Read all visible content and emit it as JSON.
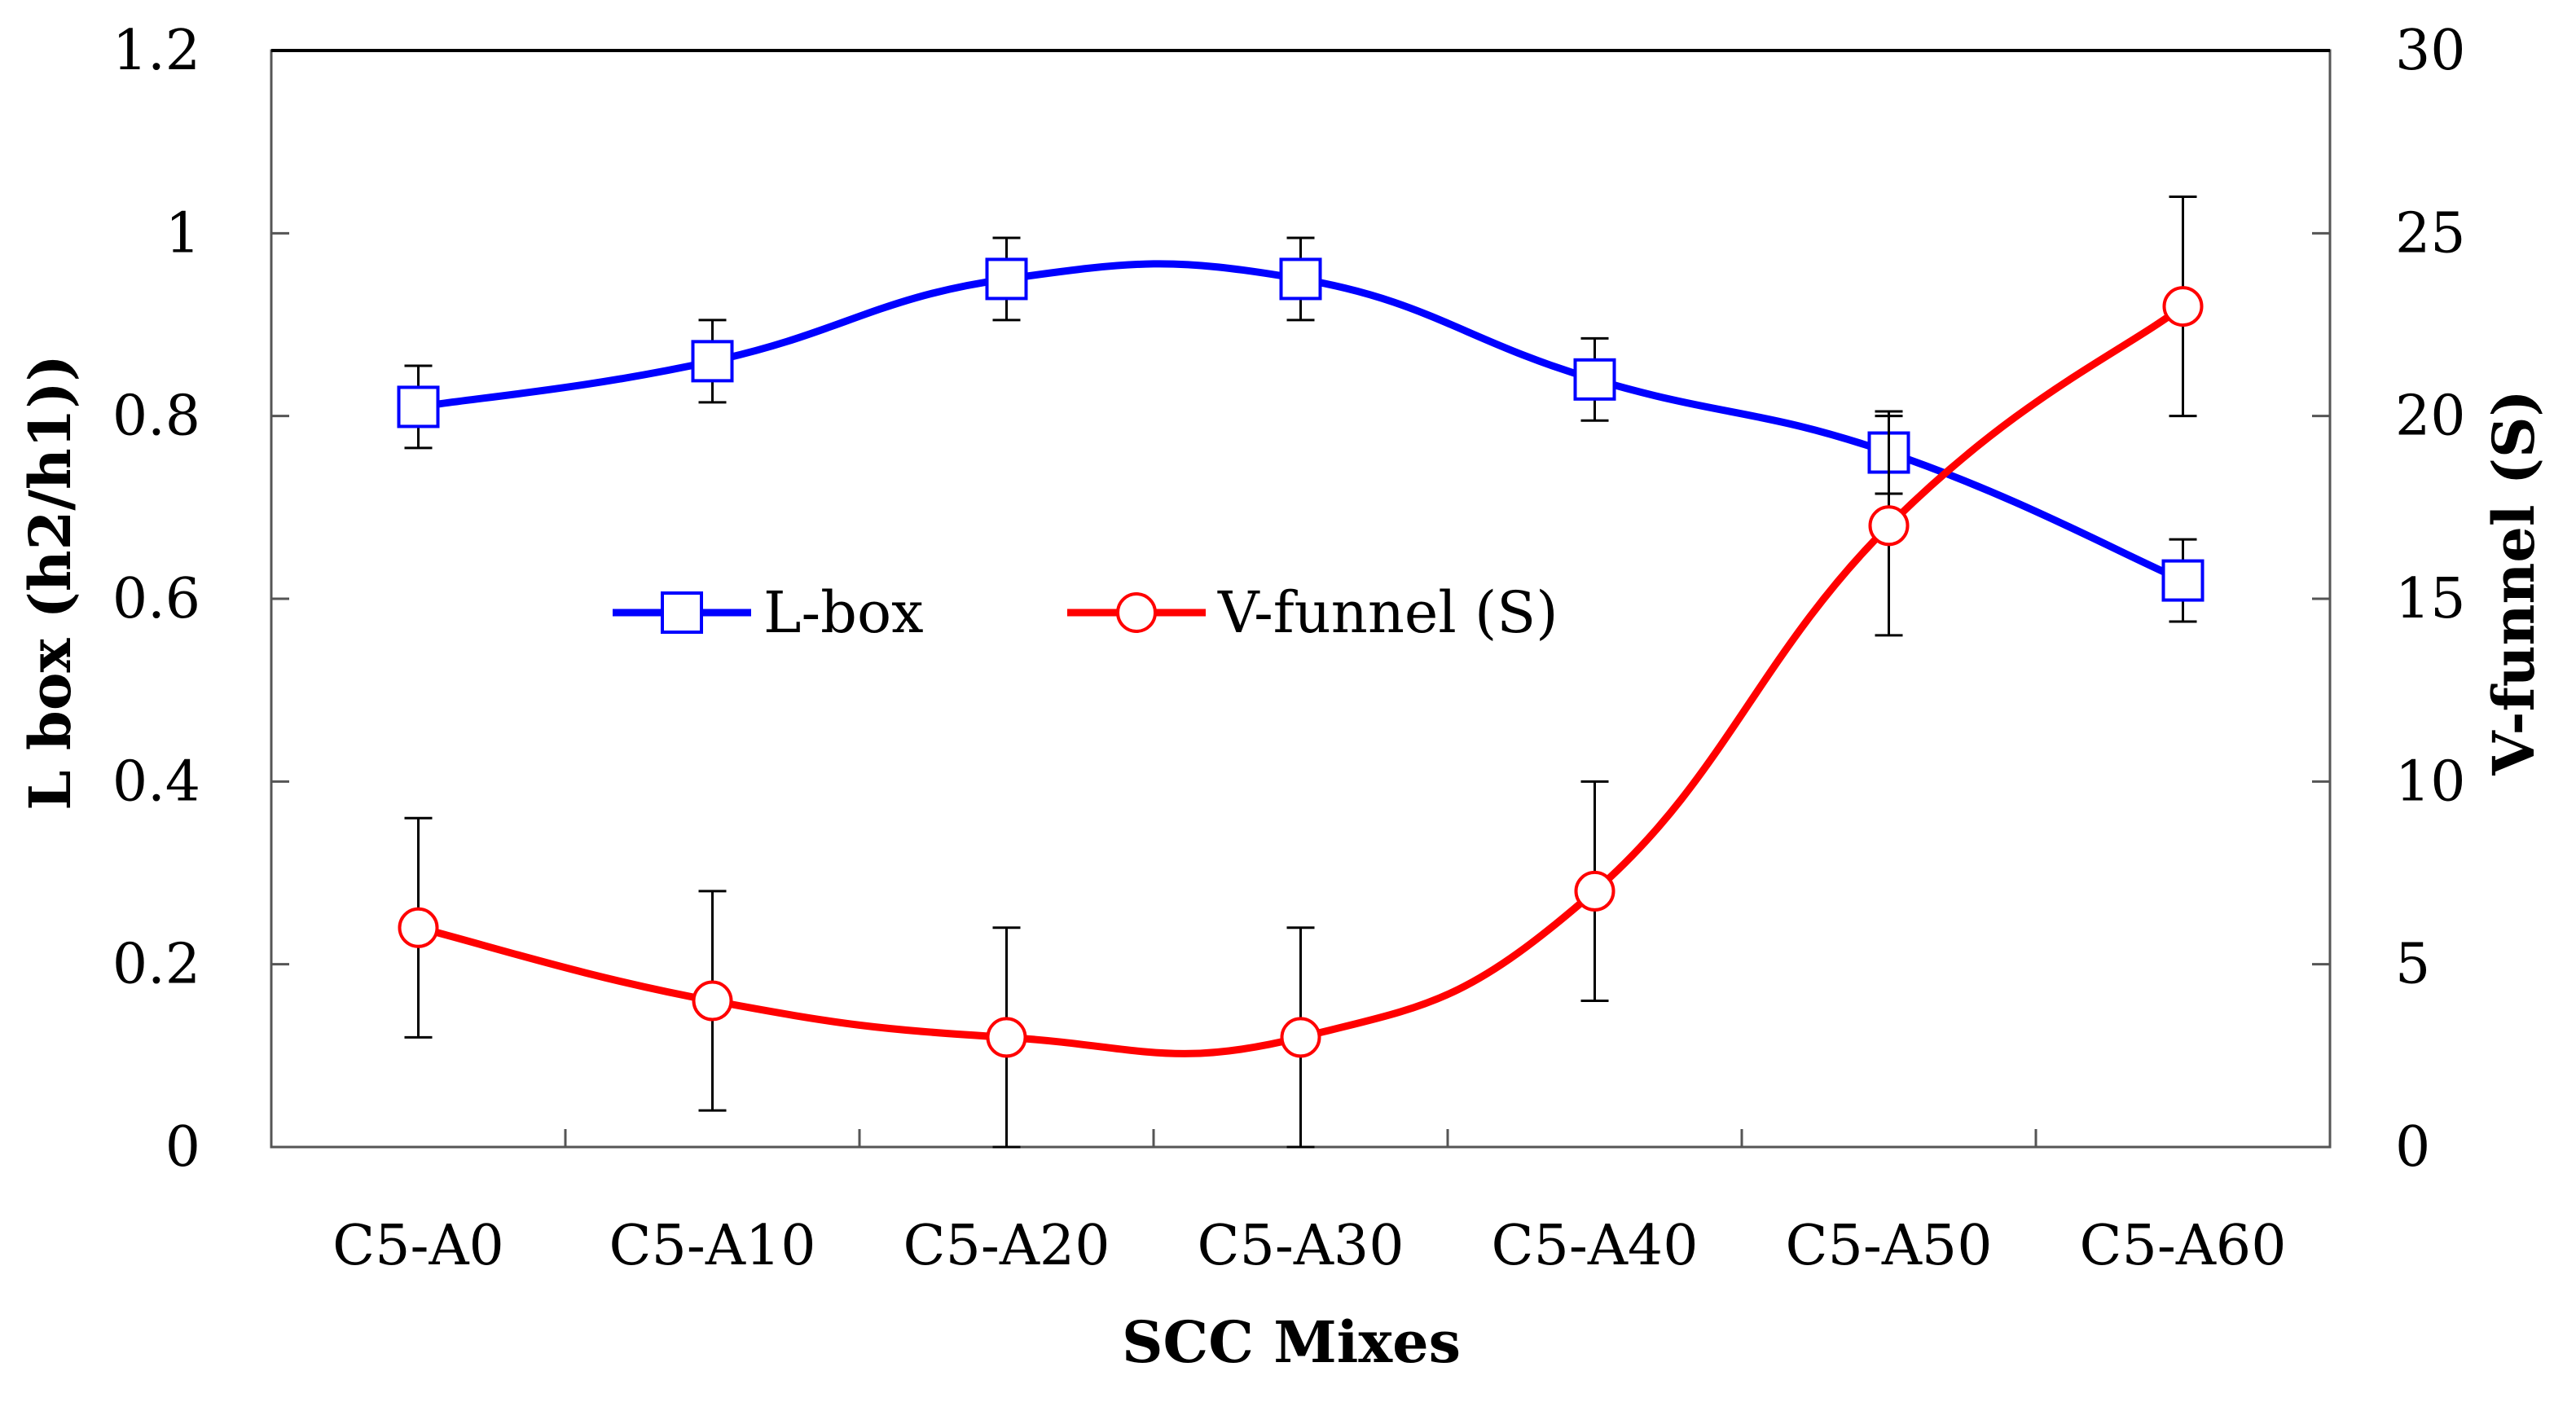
{
  "chart_data": {
    "type": "line",
    "xlabel": "SCC Mixes",
    "ylabel_left": "L box (h2/h1))",
    "ylabel_right": "V-funnel (S)",
    "categories": [
      "C5-A0",
      "C5-A10",
      "C5-A20",
      "C5-A30",
      "C5-A40",
      "C5-A50",
      "C5-A60"
    ],
    "left_axis": {
      "min": 0,
      "max": 1.2,
      "ticks": [
        0,
        0.2,
        0.4,
        0.6,
        0.8,
        1,
        1.2
      ],
      "tick_labels": [
        "0",
        "0.2",
        "0.4",
        "0.6",
        "0.8",
        "1",
        "1.2"
      ]
    },
    "right_axis": {
      "min": 0,
      "max": 30,
      "ticks": [
        0,
        5,
        10,
        15,
        20,
        25,
        30
      ],
      "tick_labels": [
        "0",
        "5",
        "10",
        "15",
        "20",
        "25",
        "30"
      ]
    },
    "series": [
      {
        "name": "L-box",
        "axis": "left",
        "color": "#0000ff",
        "marker": "square",
        "values": [
          0.81,
          0.86,
          0.95,
          0.95,
          0.84,
          0.76,
          0.62
        ],
        "errors": [
          0.045,
          0.045,
          0.045,
          0.045,
          0.045,
          0.045,
          0.045
        ]
      },
      {
        "name": "V-funnel (S)",
        "axis": "right",
        "color": "#ff0000",
        "marker": "circle",
        "values": [
          6,
          4,
          3,
          3,
          7,
          17,
          23
        ],
        "errors": [
          3,
          3,
          3,
          3,
          3,
          3,
          3
        ]
      }
    ],
    "legend_position": "center-left",
    "grid": false
  }
}
